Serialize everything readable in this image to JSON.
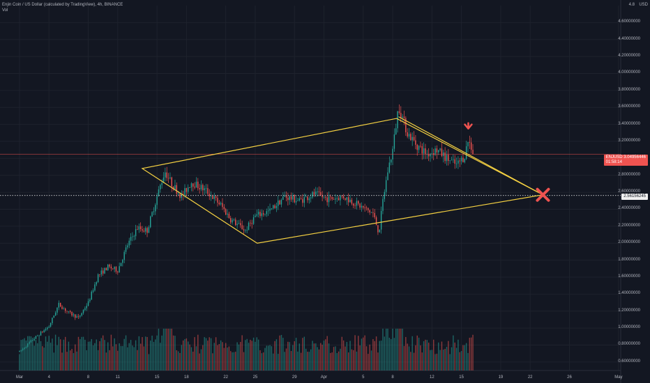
{
  "header": {
    "title": "Enjin Coin / US Dollar (calculated by TradingView), 4h, BINANCE",
    "volume_label": "Vol"
  },
  "axis": {
    "currency": "USD",
    "price_tag": "ENJUSD  3.04956446",
    "price_tag_time": "01:58:14",
    "level_tag": "2.56156245"
  },
  "colors": {
    "background": "#131722",
    "up": "#26a69a",
    "down": "#ef5350",
    "pattern": "#f5d142",
    "marker": "#ef5350",
    "grid": "#1e222d"
  },
  "chart_data": {
    "type": "candlestick",
    "symbol": "ENJUSD",
    "timeframe": "4h",
    "exchange": "BINANCE",
    "ylim": [
      0.5,
      4.8
    ],
    "y_ticks": [
      0.6,
      0.8,
      1.0,
      1.2,
      1.4,
      1.6,
      1.8,
      2.0,
      2.2,
      2.4,
      2.6,
      2.8,
      3.0,
      3.2,
      3.4,
      3.6,
      3.8,
      4.0,
      4.2,
      4.4,
      4.6
    ],
    "y_tick_labels": [
      "0.60000000",
      "0.80000000",
      "1.00000000",
      "1.20000000",
      "1.40000000",
      "1.60000000",
      "1.80000000",
      "2.00000000",
      "2.20000000",
      "2.40000000",
      "2.60000000",
      "2.80000000",
      "3.00000000",
      "3.20000000",
      "3.40000000",
      "3.60000000",
      "3.80000000",
      "4.00000000",
      "4.20000000",
      "4.40000000",
      "4.60000000"
    ],
    "y_top_label": "4.8",
    "x_tick_labels": [
      "Mar",
      "4",
      "8",
      "11",
      "15",
      "18",
      "22",
      "25",
      "29",
      "Apr",
      "5",
      "8",
      "12",
      "15",
      "19",
      "22",
      "26",
      "May"
    ],
    "x_tick_days": [
      0,
      3,
      7,
      10,
      14,
      17,
      21,
      24,
      28,
      31,
      35,
      38,
      42,
      45,
      49,
      52,
      56,
      61
    ],
    "xlim_days": [
      0,
      61
    ],
    "price_anchors": [
      [
        0,
        0.72
      ],
      [
        1.5,
        0.88
      ],
      [
        3,
        1.02
      ],
      [
        4,
        1.28
      ],
      [
        5,
        1.18
      ],
      [
        6,
        1.12
      ],
      [
        7,
        1.3
      ],
      [
        8,
        1.62
      ],
      [
        9,
        1.72
      ],
      [
        10,
        1.68
      ],
      [
        11,
        1.98
      ],
      [
        12,
        2.18
      ],
      [
        13,
        2.15
      ],
      [
        14,
        2.55
      ],
      [
        14.8,
        2.85
      ],
      [
        15.5,
        2.7
      ],
      [
        16.5,
        2.55
      ],
      [
        17.5,
        2.72
      ],
      [
        19,
        2.62
      ],
      [
        20.5,
        2.45
      ],
      [
        21.5,
        2.28
      ],
      [
        23,
        2.15
      ],
      [
        24,
        2.32
      ],
      [
        25.5,
        2.38
      ],
      [
        27,
        2.55
      ],
      [
        28.5,
        2.5
      ],
      [
        30,
        2.58
      ],
      [
        31.5,
        2.52
      ],
      [
        33,
        2.55
      ],
      [
        34.5,
        2.45
      ],
      [
        36,
        2.35
      ],
      [
        36.6,
        2.12
      ],
      [
        37,
        2.5
      ],
      [
        37.5,
        2.85
      ],
      [
        38,
        3.1
      ],
      [
        38.6,
        3.62
      ],
      [
        39.5,
        3.3
      ],
      [
        40.5,
        3.15
      ],
      [
        41.5,
        3.05
      ],
      [
        42.5,
        3.1
      ],
      [
        43.5,
        3.0
      ],
      [
        44.5,
        2.92
      ],
      [
        45.3,
        3.02
      ],
      [
        45.7,
        3.22
      ],
      [
        46.3,
        3.05
      ]
    ],
    "price_last": 3.04956446,
    "annotations": {
      "wedge_points": [
        [
          12.5,
          2.88
        ],
        [
          24.2,
          2.0
        ],
        [
          53.3,
          2.57
        ],
        [
          38.4,
          3.47
        ]
      ],
      "resistance_line": [
        [
          38.6,
          3.49
        ],
        [
          53.3,
          2.57
        ]
      ],
      "horizontal_level": 2.56156245,
      "down_arrow_at": [
        45.7,
        3.35
      ],
      "x_marker_at": [
        53.3,
        2.57
      ]
    }
  }
}
